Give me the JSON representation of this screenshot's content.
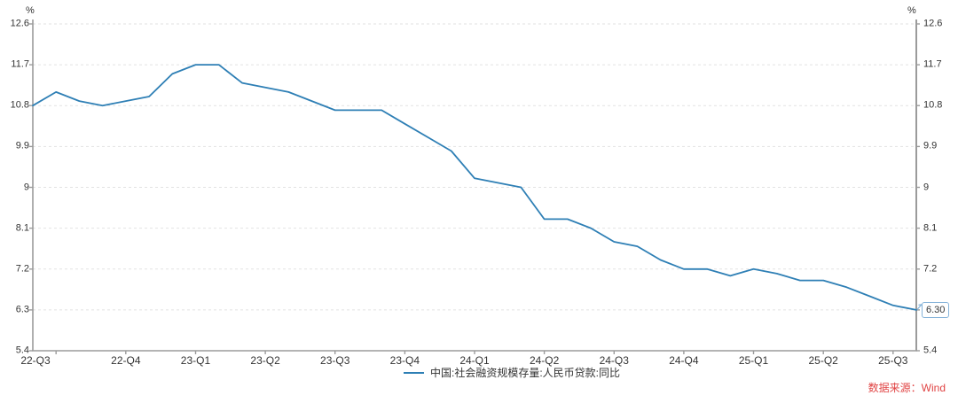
{
  "colors": {
    "accent_line": "#2e7fb5",
    "grid": "#e2e2e2",
    "axis": "#9b9b9b",
    "tick_text": "#333333",
    "source_red": "#e04343",
    "callout_border": "#85b3d9"
  },
  "chart_data": {
    "type": "line",
    "title": "",
    "unit": "%",
    "ylim": [
      5.4,
      12.6
    ],
    "y_ticks": [
      "12.6",
      "11.7",
      "10.8",
      "9.9",
      "9",
      "8.1",
      "7.2",
      "6.3",
      "5.4"
    ],
    "x_labels": [
      "22-Q3",
      "22-Q4",
      "23-Q1",
      "23-Q2",
      "23-Q3",
      "23-Q4",
      "24-Q1",
      "24-Q2",
      "24-Q3",
      "24-Q4",
      "25-Q1",
      "25-Q2",
      "25-Q3"
    ],
    "x_label_month_indices": [
      1,
      4,
      7,
      10,
      13,
      16,
      19,
      22,
      25,
      28,
      31,
      34,
      37
    ],
    "grid": "horizontal-dashed",
    "legend_position": "bottom-center",
    "series": [
      {
        "name": "中国:社会融资规模存量:人民币贷款:同比",
        "color": "#2e7fb5",
        "values": [
          10.8,
          11.1,
          10.9,
          10.8,
          10.9,
          11.0,
          11.5,
          11.7,
          11.7,
          11.3,
          11.2,
          11.1,
          10.9,
          10.7,
          10.7,
          10.7,
          10.4,
          10.1,
          9.8,
          9.2,
          9.1,
          9.0,
          8.3,
          8.3,
          8.1,
          7.8,
          7.7,
          7.4,
          7.2,
          7.2,
          7.05,
          7.2,
          7.1,
          6.95,
          6.95,
          6.8,
          6.6,
          6.4,
          6.3
        ]
      }
    ],
    "end_value_label": "6.30",
    "source": "数据来源：Wind"
  }
}
